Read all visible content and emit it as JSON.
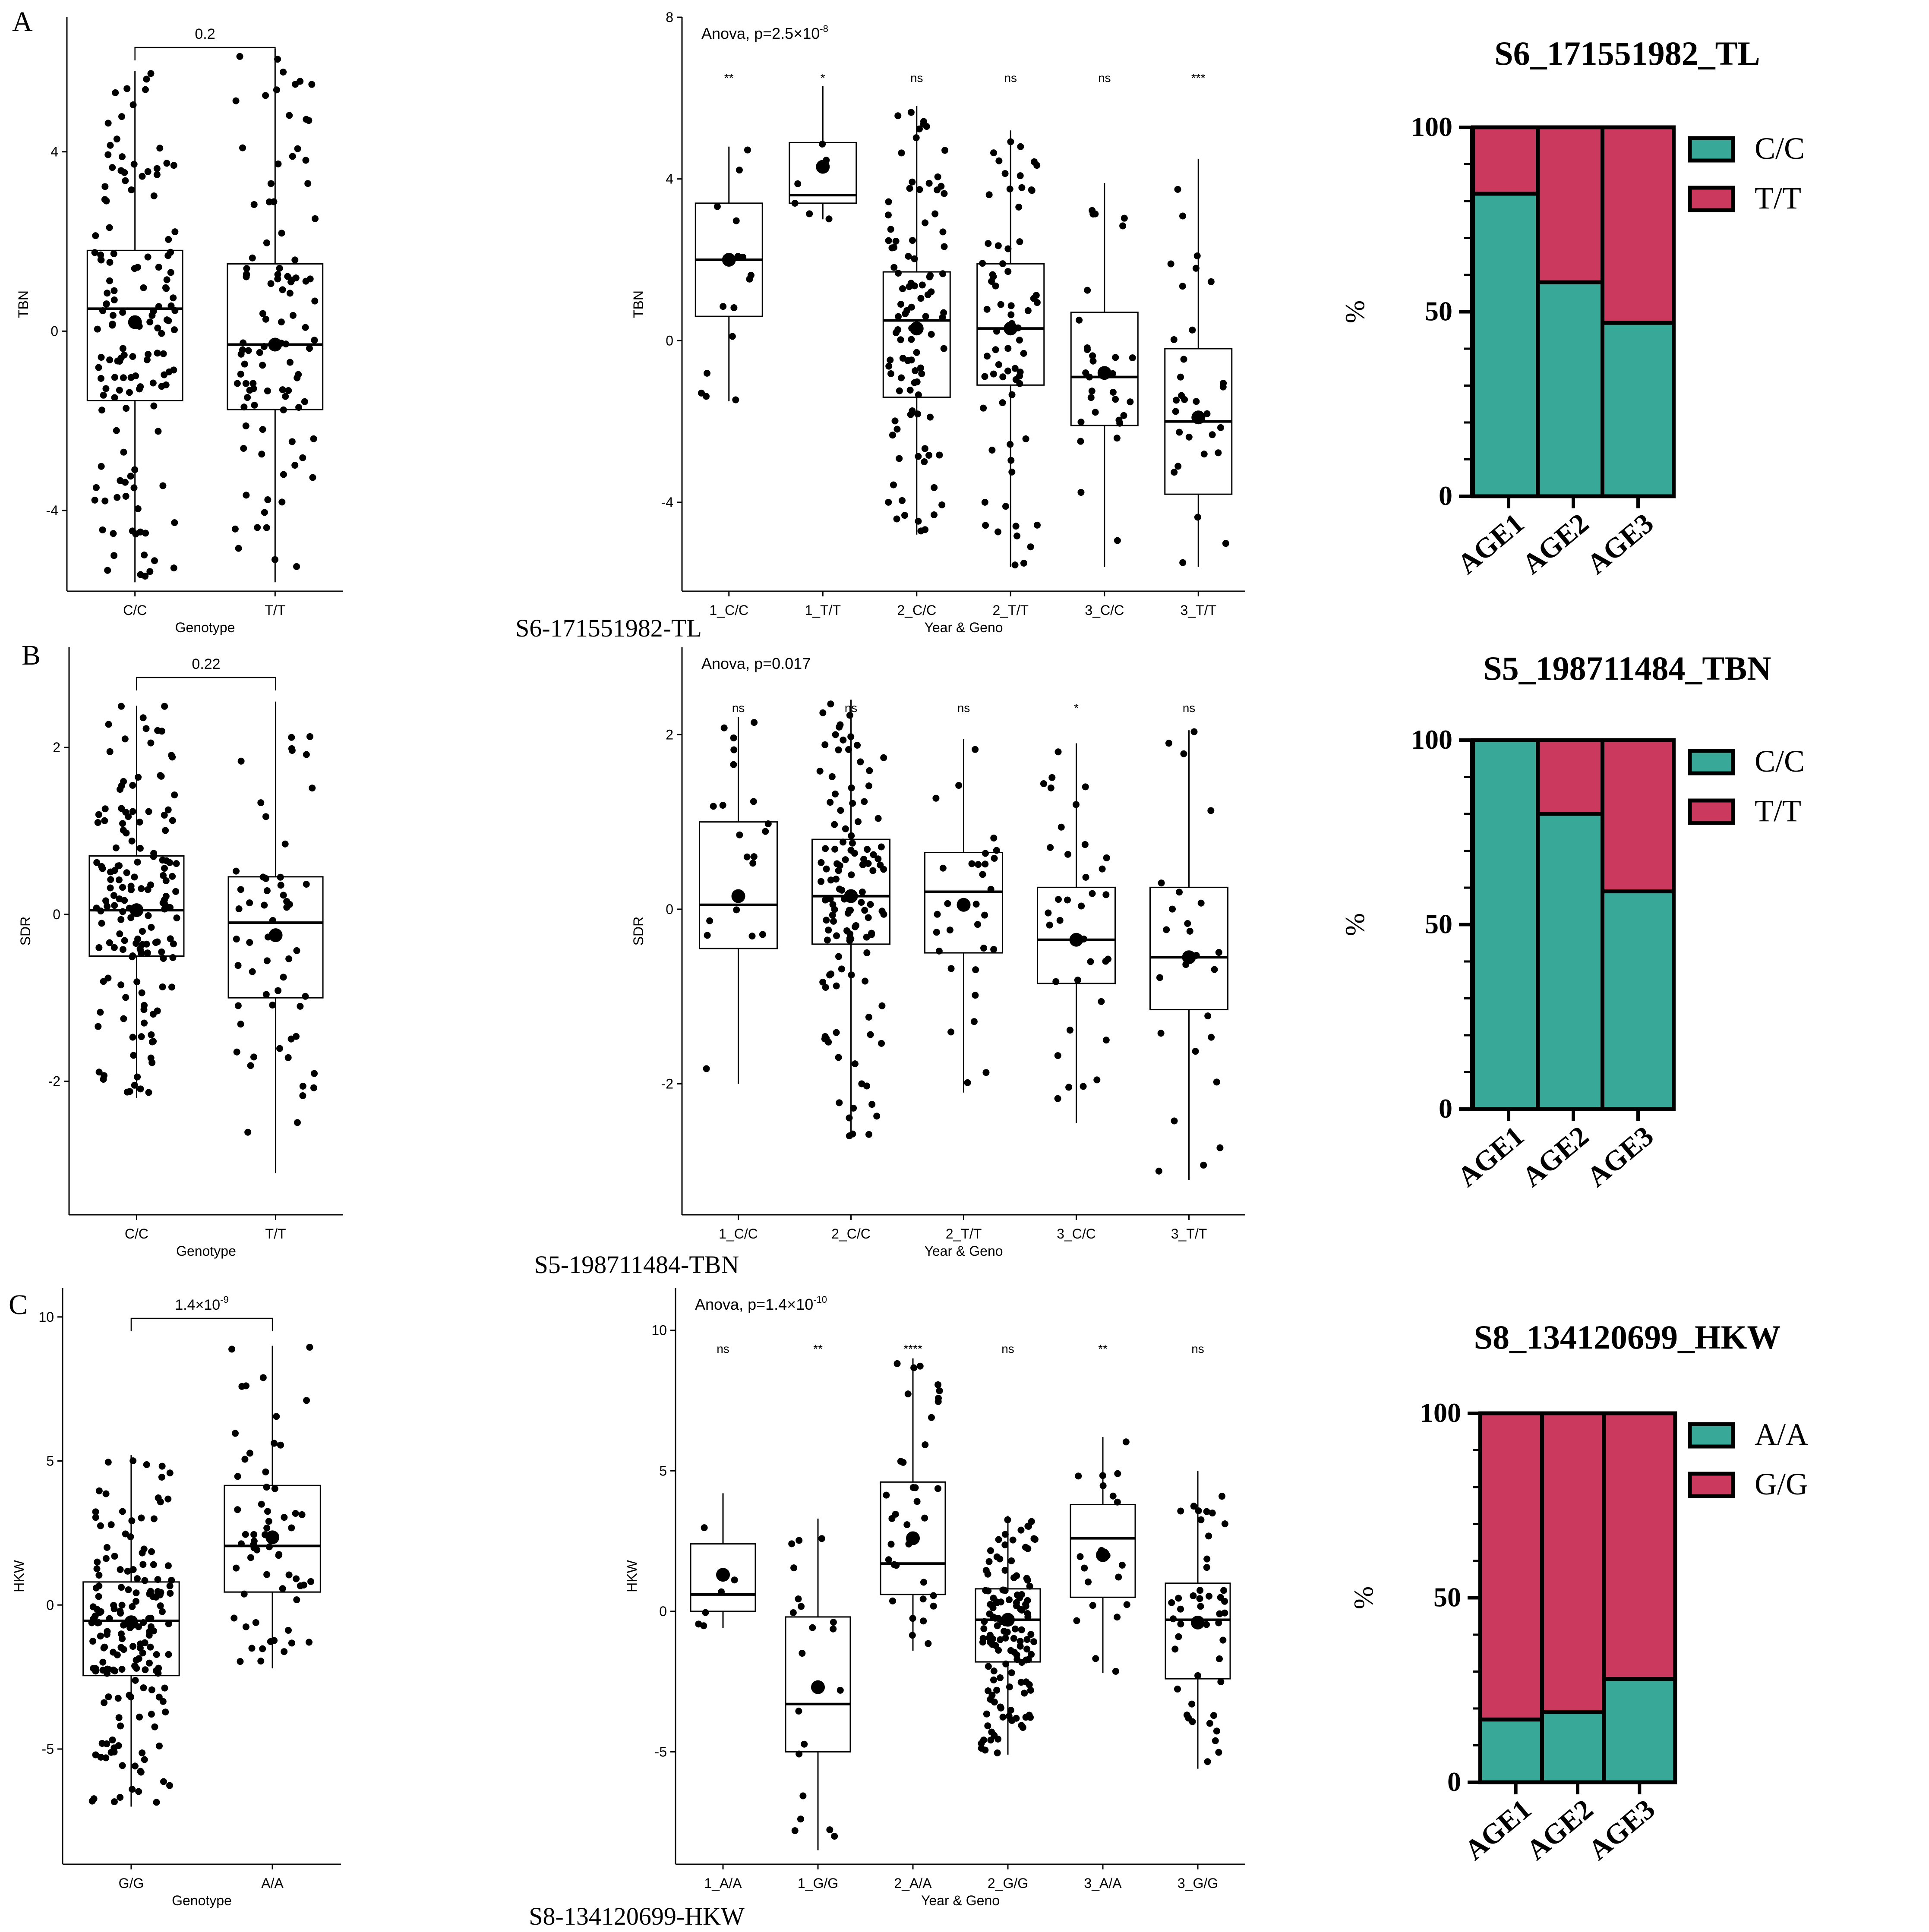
{
  "figure": {
    "panel_letters": [
      "A",
      "B",
      "C"
    ],
    "row_captions": [
      "S6-171551982-TL",
      "S5-198711484-TBN",
      "S8-134120699-HKW"
    ]
  },
  "colors": {
    "green": "#38A898",
    "red": "#CB3A5E",
    "black": "#000000"
  },
  "chart_data": [
    {
      "id": "A1",
      "type": "boxplot",
      "xlabel": "Genotype",
      "ylabel": "TBN",
      "ylim": [
        -5.8,
        7.0
      ],
      "yticks": [
        -4,
        0,
        4
      ],
      "categories": [
        "C/C",
        "T/T"
      ],
      "boxes": [
        {
          "q1": -1.55,
          "median": 0.5,
          "q3": 1.8,
          "min": -5.6,
          "max": 5.8,
          "mean": 0.2
        },
        {
          "q1": -1.75,
          "median": -0.3,
          "q3": 1.5,
          "min": -5.6,
          "max": 6.3,
          "mean": -0.3
        }
      ],
      "comparison": {
        "label": "0.2"
      }
    },
    {
      "id": "A2",
      "type": "boxplot",
      "xlabel": "Year & Geno",
      "ylabel": "TBN",
      "ylim": [
        -6.2,
        8.0
      ],
      "yticks": [
        -4,
        0,
        4,
        8
      ],
      "categories": [
        "1_C/C",
        "1_T/T",
        "2_C/C",
        "2_T/T",
        "3_C/C",
        "3_T/T"
      ],
      "boxes": [
        {
          "q1": 0.6,
          "median": 2.0,
          "q3": 3.4,
          "min": -1.5,
          "max": 4.8,
          "mean": 2.0
        },
        {
          "q1": 3.4,
          "median": 3.6,
          "q3": 4.9,
          "min": 3.0,
          "max": 6.3,
          "mean": 4.3
        },
        {
          "q1": -1.4,
          "median": 0.5,
          "q3": 1.7,
          "min": -4.8,
          "max": 5.8,
          "mean": 0.3
        },
        {
          "q1": -1.1,
          "median": 0.3,
          "q3": 1.9,
          "min": -5.6,
          "max": 5.2,
          "mean": 0.3
        },
        {
          "q1": -2.1,
          "median": -0.9,
          "q3": 0.7,
          "min": -5.6,
          "max": 3.9,
          "mean": -0.8
        },
        {
          "q1": -3.8,
          "median": -2.0,
          "q3": -0.2,
          "min": -5.6,
          "max": 4.5,
          "mean": -1.9
        }
      ],
      "annotation": "Anova, p=2.5×10",
      "annotation_exp": "-8",
      "significance": [
        "**",
        "*",
        "ns",
        "ns",
        "ns",
        "***"
      ]
    },
    {
      "id": "A3",
      "type": "stacked_bar",
      "title": "S6_171551982_TL",
      "ylabel": "%",
      "ylim": [
        0,
        100
      ],
      "yticks": [
        0,
        50,
        100
      ],
      "categories": [
        "AGE1",
        "AGE2",
        "AGE3"
      ],
      "series": [
        {
          "name": "C/C",
          "values": [
            82,
            58,
            47
          ]
        },
        {
          "name": "T/T",
          "values": [
            18,
            42,
            53
          ]
        }
      ]
    },
    {
      "id": "B1",
      "type": "boxplot",
      "xlabel": "Genotype",
      "ylabel": "SDR",
      "ylim": [
        -3.6,
        3.2
      ],
      "yticks": [
        -2,
        0,
        2
      ],
      "categories": [
        "C/C",
        "T/T"
      ],
      "boxes": [
        {
          "q1": -0.5,
          "median": 0.05,
          "q3": 0.7,
          "min": -2.2,
          "max": 2.5,
          "mean": 0.05
        },
        {
          "q1": -1.0,
          "median": -0.1,
          "q3": 0.45,
          "min": -3.1,
          "max": 2.55,
          "mean": -0.25
        }
      ],
      "comparison": {
        "label": "0.22"
      }
    },
    {
      "id": "B2",
      "type": "boxplot",
      "xlabel": "Year & Geno",
      "ylabel": "SDR",
      "ylim": [
        -3.5,
        3.0
      ],
      "yticks": [
        -2,
        0,
        2
      ],
      "categories": [
        "1_C/C",
        "2_C/C",
        "2_T/T",
        "3_C/C",
        "3_T/T"
      ],
      "boxes": [
        {
          "q1": -0.45,
          "median": 0.05,
          "q3": 1.0,
          "min": -2.0,
          "max": 2.2,
          "mean": 0.15
        },
        {
          "q1": -0.4,
          "median": 0.15,
          "q3": 0.8,
          "min": -2.6,
          "max": 2.4,
          "mean": 0.15
        },
        {
          "q1": -0.5,
          "median": 0.2,
          "q3": 0.65,
          "min": -2.1,
          "max": 1.95,
          "mean": 0.05
        },
        {
          "q1": -0.85,
          "median": -0.35,
          "q3": 0.25,
          "min": -2.45,
          "max": 1.9,
          "mean": -0.35
        },
        {
          "q1": -1.15,
          "median": -0.55,
          "q3": 0.25,
          "min": -3.1,
          "max": 2.05,
          "mean": -0.55
        }
      ],
      "annotation": "Anova, p=0.017",
      "annotation_exp": "",
      "significance": [
        "ns",
        "ns",
        "ns",
        "*",
        "ns"
      ]
    },
    {
      "id": "B3",
      "type": "stacked_bar",
      "title": "S5_198711484_TBN",
      "ylabel": "%",
      "ylim": [
        0,
        100
      ],
      "yticks": [
        0,
        50,
        100
      ],
      "categories": [
        "AGE1",
        "AGE2",
        "AGE3"
      ],
      "series": [
        {
          "name": "C/C",
          "values": [
            100,
            80,
            59
          ]
        },
        {
          "name": "T/T",
          "values": [
            0,
            20,
            41
          ]
        }
      ]
    },
    {
      "id": "C1",
      "type": "boxplot",
      "xlabel": "Genotype",
      "ylabel": "HKW",
      "ylim": [
        -9.0,
        11.0
      ],
      "yticks": [
        -5,
        0,
        5,
        10
      ],
      "categories": [
        "G/G",
        "A/A"
      ],
      "boxes": [
        {
          "q1": -2.45,
          "median": -0.55,
          "q3": 0.8,
          "min": -7.0,
          "max": 5.2,
          "mean": -0.6
        },
        {
          "q1": 0.45,
          "median": 2.05,
          "q3": 4.15,
          "min": -2.2,
          "max": 9.0,
          "mean": 2.35
        }
      ],
      "comparison": {
        "label": "1.4×10",
        "exp": "-9"
      }
    },
    {
      "id": "C2",
      "type": "boxplot",
      "xlabel": "Year & Geno",
      "ylabel": "HKW",
      "ylim": [
        -9.0,
        11.5
      ],
      "yticks": [
        -5,
        0,
        5,
        10
      ],
      "categories": [
        "1_A/A",
        "1_G/G",
        "2_A/A",
        "2_G/G",
        "3_A/A",
        "3_G/G"
      ],
      "boxes": [
        {
          "q1": 0.0,
          "median": 0.6,
          "q3": 2.4,
          "min": -0.6,
          "max": 4.2,
          "mean": 1.3
        },
        {
          "q1": -5.0,
          "median": -3.3,
          "q3": -0.2,
          "min": -8.5,
          "max": 3.3,
          "mean": -2.7
        },
        {
          "q1": 0.6,
          "median": 1.7,
          "q3": 4.6,
          "min": -1.4,
          "max": 9.0,
          "mean": 2.6
        },
        {
          "q1": -1.8,
          "median": -0.3,
          "q3": 0.8,
          "min": -5.1,
          "max": 3.4,
          "mean": -0.3
        },
        {
          "q1": 0.5,
          "median": 2.6,
          "q3": 3.8,
          "min": -2.2,
          "max": 6.2,
          "mean": 2.0
        },
        {
          "q1": -2.4,
          "median": -0.3,
          "q3": 1.0,
          "min": -5.6,
          "max": 5.0,
          "mean": -0.4
        }
      ],
      "annotation": "Anova, p=1.4×10",
      "annotation_exp": "-10",
      "significance": [
        "ns",
        "**",
        "****",
        "ns",
        "**",
        "ns"
      ]
    },
    {
      "id": "C3",
      "type": "stacked_bar",
      "title": "S8_134120699_HKW",
      "ylabel": "%",
      "ylim": [
        0,
        100
      ],
      "yticks": [
        0,
        50,
        100
      ],
      "categories": [
        "AGE1",
        "AGE2",
        "AGE3"
      ],
      "series": [
        {
          "name": "A/A",
          "values": [
            17,
            19,
            28
          ]
        },
        {
          "name": "G/G",
          "values": [
            83,
            81,
            72
          ]
        }
      ]
    }
  ]
}
